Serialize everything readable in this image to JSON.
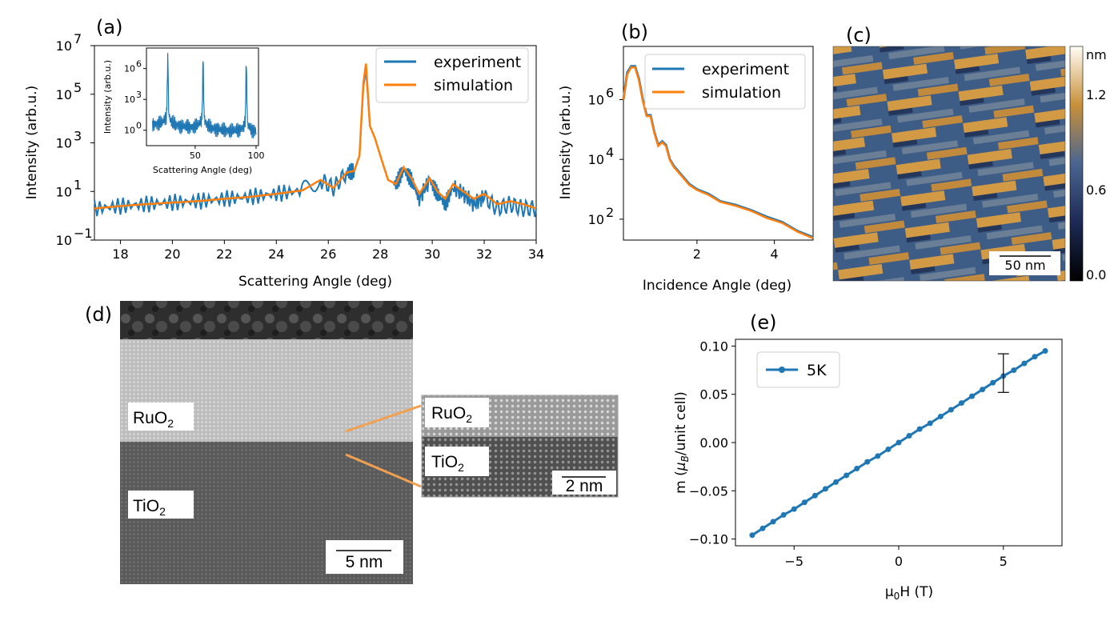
{
  "panel_labels": {
    "a": "(a)",
    "b": "(b)",
    "c": "(c)",
    "d": "(d)",
    "e": "(e)"
  },
  "colors": {
    "experiment": "#1f77b4",
    "simulation": "#ff7f0e",
    "fiveK": "#1f77b4"
  },
  "chart_data": [
    {
      "id": "a",
      "type": "line",
      "xlabel": "Scattering Angle (deg)",
      "ylabel": "Intensity (arb.u.)",
      "xlim": [
        17,
        34
      ],
      "yscale": "log",
      "ylim": [
        0.1,
        10000000
      ],
      "xticks": [
        "18",
        "20",
        "22",
        "24",
        "26",
        "28",
        "30",
        "32",
        "34"
      ],
      "yticks": [
        "10",
        "10",
        "10",
        "10",
        "10"
      ],
      "yticks_exp": [
        "−1",
        "1",
        "3",
        "5",
        "7"
      ],
      "legend": [
        "experiment",
        "simulation"
      ],
      "legend_position": "upper-right",
      "series": [
        {
          "name": "experiment",
          "x": [
            17,
            18,
            19,
            20,
            21,
            22,
            23,
            24,
            25,
            25.7,
            26.2,
            26.7,
            27.0,
            27.2,
            27.35,
            27.45,
            27.6,
            27.8,
            28.0,
            28.3,
            28.6,
            28.9,
            29.2,
            29.5,
            29.9,
            30.2,
            30.5,
            30.8,
            31.2,
            31.6,
            32.0,
            32.5,
            33,
            33.5,
            34
          ],
          "y": [
            2,
            2.5,
            3,
            3.5,
            4,
            5,
            6,
            8,
            11,
            30,
            14,
            60,
            70,
            300,
            200000,
            1000000,
            5000,
            1500,
            300,
            30,
            20,
            80,
            30,
            5,
            30,
            8,
            3,
            15,
            8,
            3,
            6,
            2,
            3,
            2,
            2
          ]
        },
        {
          "name": "simulation",
          "x": [
            17,
            18,
            19,
            20,
            21,
            22,
            23,
            24,
            25,
            25.7,
            26.2,
            26.7,
            27.0,
            27.2,
            27.35,
            27.45,
            27.6,
            27.8,
            28.0,
            28.3,
            28.6,
            28.9,
            29.2,
            29.5,
            29.9,
            30.2,
            30.5,
            30.8,
            31.2,
            31.6,
            32.0,
            32.5,
            33,
            33.5,
            34
          ],
          "y": [
            2,
            2.5,
            3,
            3.5,
            4,
            5,
            6,
            8,
            11,
            30,
            14,
            60,
            70,
            300,
            300000,
            1800000,
            5000,
            1500,
            300,
            30,
            20,
            100,
            35,
            8,
            35,
            10,
            5,
            20,
            10,
            5,
            8,
            3,
            4,
            3,
            2
          ]
        }
      ],
      "inset": {
        "xlabel": "Scattering Angle (deg)",
        "ylabel": "Intensity (arb.u.)",
        "xlim": [
          10,
          102
        ],
        "xticks": [
          "50",
          "100"
        ],
        "yticks": [
          "10",
          "10",
          "10"
        ],
        "yticks_exp": [
          "0",
          "3",
          "6"
        ],
        "peaks_deg": [
          27.5,
          56.5,
          92
        ]
      }
    },
    {
      "id": "b",
      "type": "line",
      "xlabel": "Incidence Angle (deg)",
      "ylabel": "Intensity (arb.u.)",
      "xlim": [
        0.1,
        5
      ],
      "yscale": "log",
      "ylim": [
        20,
        60000000
      ],
      "xticks": [
        "2",
        "4"
      ],
      "yticks": [
        "10",
        "10",
        "10"
      ],
      "yticks_exp": [
        "2",
        "4",
        "6"
      ],
      "legend": [
        "experiment",
        "simulation"
      ],
      "legend_position": "upper-right",
      "series": [
        {
          "name": "experiment",
          "x": [
            0.1,
            0.2,
            0.3,
            0.4,
            0.5,
            0.6,
            0.7,
            0.8,
            0.9,
            1.0,
            1.1,
            1.2,
            1.3,
            1.4,
            1.6,
            1.8,
            2.0,
            2.3,
            2.6,
            3.0,
            3.4,
            3.8,
            4.2,
            4.6,
            5.0
          ],
          "y": [
            1000000,
            8000000,
            13000000,
            13000000,
            5000000,
            1000000,
            300000,
            300000,
            80000,
            30000,
            40000,
            30000,
            10000,
            6000,
            3000,
            1500,
            1000,
            700,
            400,
            300,
            200,
            120,
            80,
            40,
            25
          ]
        },
        {
          "name": "simulation",
          "x": [
            0.1,
            0.2,
            0.3,
            0.4,
            0.5,
            0.6,
            0.7,
            0.8,
            0.9,
            1.0,
            1.1,
            1.2,
            1.3,
            1.4,
            1.6,
            1.8,
            2.0,
            2.3,
            2.6,
            3.0,
            3.4,
            3.8,
            4.2,
            4.6,
            5.0
          ],
          "y": [
            1000000,
            7000000,
            12000000,
            12000000,
            4500000,
            900000,
            280000,
            280000,
            75000,
            28000,
            37000,
            28000,
            9500,
            5600,
            2800,
            1400,
            950,
            650,
            380,
            280,
            190,
            110,
            75,
            38,
            23
          ]
        }
      ]
    },
    {
      "id": "e",
      "type": "line",
      "xlabel": "μ₀H (T)",
      "ylabel": "m (μB/unit cell)",
      "xlim": [
        -7.8,
        7.8
      ],
      "ylim": [
        -0.107,
        0.107
      ],
      "xticks": [
        "−5",
        "0",
        "5"
      ],
      "yticks": [
        "−0.10",
        "−0.05",
        "0.00",
        "0.05",
        "0.10"
      ],
      "legend": [
        "5K"
      ],
      "legend_position": "upper-left",
      "series": [
        {
          "name": "5K",
          "x": [
            -7,
            -6.5,
            -6,
            -5.5,
            -5,
            -4.5,
            -4,
            -3.5,
            -3,
            -2.5,
            -2,
            -1.5,
            -1,
            -0.5,
            0,
            0.5,
            1,
            1.5,
            2,
            2.5,
            3,
            3.5,
            4,
            4.5,
            5,
            5.5,
            6,
            6.5,
            7
          ],
          "y": [
            -0.096,
            -0.089,
            -0.082,
            -0.075,
            -0.069,
            -0.062,
            -0.055,
            -0.048,
            -0.041,
            -0.034,
            -0.027,
            -0.02,
            -0.014,
            -0.007,
            0,
            0.007,
            0.014,
            0.02,
            0.027,
            0.034,
            0.041,
            0.048,
            0.055,
            0.062,
            0.069,
            0.075,
            0.082,
            0.089,
            0.095
          ]
        }
      ],
      "errorbar": {
        "x": 5,
        "y": 0.072,
        "yerr": 0.02
      }
    }
  ],
  "panel_c": {
    "colorbar_unit": "nm",
    "colorbar_ticks": [
      "1.2",
      "0.6",
      "0.0"
    ],
    "scalebar": "50 nm"
  },
  "panel_d": {
    "label_top": "RuO",
    "label_top_sub": "2",
    "label_bottom": "TiO",
    "label_bottom_sub": "2",
    "scalebar": "5 nm",
    "inset_label_top": "RuO",
    "inset_label_top_sub": "2",
    "inset_label_bottom": "TiO",
    "inset_label_bottom_sub": "2",
    "inset_scalebar": "2 nm"
  }
}
